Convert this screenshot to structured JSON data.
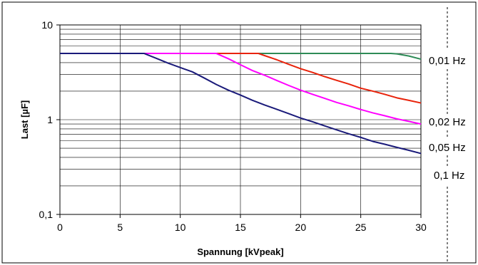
{
  "chart_data": {
    "type": "line",
    "title": "",
    "xlabel": "Spannung [kVpeak]",
    "ylabel": "Last [µF]",
    "x_scale": "linear",
    "y_scale": "log",
    "xlim": [
      0,
      30
    ],
    "ylim": [
      0.1,
      10
    ],
    "x_ticks": [
      0,
      5,
      10,
      15,
      20,
      25,
      30
    ],
    "x_tick_labels": [
      "0",
      "5",
      "10",
      "15",
      "20",
      "25",
      "30"
    ],
    "y_ticks": [
      0.1,
      1,
      10
    ],
    "y_tick_labels": [
      "0,1",
      "1",
      "10"
    ],
    "grid": true,
    "legend": "right-side labels",
    "series": [
      {
        "name": "0,01 Hz",
        "color": "#2e8b57",
        "x": [
          0,
          27.5,
          28,
          29,
          30
        ],
        "y": [
          5,
          5,
          4.95,
          4.7,
          4.35
        ]
      },
      {
        "name": "0,02 Hz",
        "color": "#e8220a",
        "x": [
          0,
          16.5,
          17,
          18,
          19,
          20,
          21,
          22,
          23,
          24,
          25,
          26,
          27,
          28,
          29,
          30
        ],
        "y": [
          5,
          5,
          4.75,
          4.3,
          3.85,
          3.45,
          3.15,
          2.85,
          2.6,
          2.38,
          2.15,
          2.0,
          1.85,
          1.7,
          1.6,
          1.5
        ]
      },
      {
        "name": "0,05 Hz",
        "color": "#ff00ff",
        "x": [
          0,
          13,
          14,
          15,
          16,
          17,
          18,
          19,
          20,
          21,
          22,
          23,
          24,
          25,
          26,
          27,
          28,
          29,
          30
        ],
        "y": [
          5,
          5,
          4.4,
          3.8,
          3.3,
          2.95,
          2.6,
          2.3,
          2.05,
          1.85,
          1.68,
          1.52,
          1.4,
          1.28,
          1.18,
          1.1,
          1.02,
          0.96,
          0.9
        ]
      },
      {
        "name": "0,1 Hz",
        "color": "#1a1a7a",
        "x": [
          0,
          7,
          8,
          9,
          10,
          11,
          12,
          13,
          14,
          15,
          16,
          17,
          18,
          19,
          20,
          21,
          22,
          23,
          24,
          25,
          26,
          27,
          28,
          29,
          30
        ],
        "y": [
          5,
          5,
          4.45,
          3.95,
          3.55,
          3.2,
          2.75,
          2.35,
          2.05,
          1.82,
          1.6,
          1.43,
          1.29,
          1.16,
          1.04,
          0.95,
          0.86,
          0.78,
          0.71,
          0.65,
          0.59,
          0.55,
          0.51,
          0.475,
          0.44
        ]
      }
    ]
  }
}
